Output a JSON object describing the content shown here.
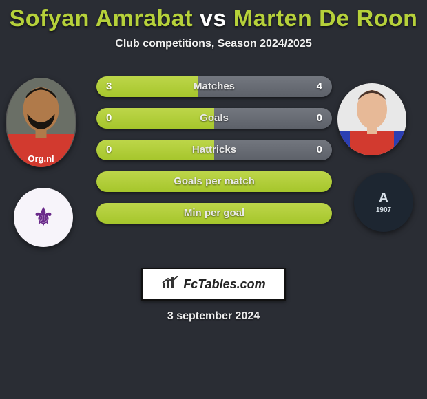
{
  "title_color": "#b6d13a",
  "vs_color": "#ffffff",
  "player1": {
    "name": "Sofyan Amrabat",
    "shirt_color": "#d23a2f",
    "skin": "#b07a4a"
  },
  "player2": {
    "name": "Marten De Roon",
    "shirt_color": "#d23a2f",
    "skin": "#e7b997",
    "sleeve": "#2b3fb3"
  },
  "subtitle": "Club competitions, Season 2024/2025",
  "left_color": "#a6c62c",
  "right_color": "#5d6169",
  "rows": [
    {
      "label": "Matches",
      "left": "3",
      "right": "4",
      "left_pct": 42.9,
      "right_pct": 57.1
    },
    {
      "label": "Goals",
      "left": "0",
      "right": "0",
      "left_pct": 50,
      "right_pct": 50
    },
    {
      "label": "Hattricks",
      "left": "0",
      "right": "0",
      "left_pct": 50,
      "right_pct": 50
    },
    {
      "label": "Goals per match",
      "left": "",
      "right": "",
      "left_pct": 100,
      "right_pct": 0
    },
    {
      "label": "Min per goal",
      "left": "",
      "right": "",
      "left_pct": 100,
      "right_pct": 0
    }
  ],
  "club1": {
    "initials": "⚜",
    "bg": "#f7f4fa"
  },
  "club2": {
    "initials": "A",
    "year": "1907",
    "bg": "#1d2631"
  },
  "logo_text": "FcTables.com",
  "date": "3 september 2024"
}
